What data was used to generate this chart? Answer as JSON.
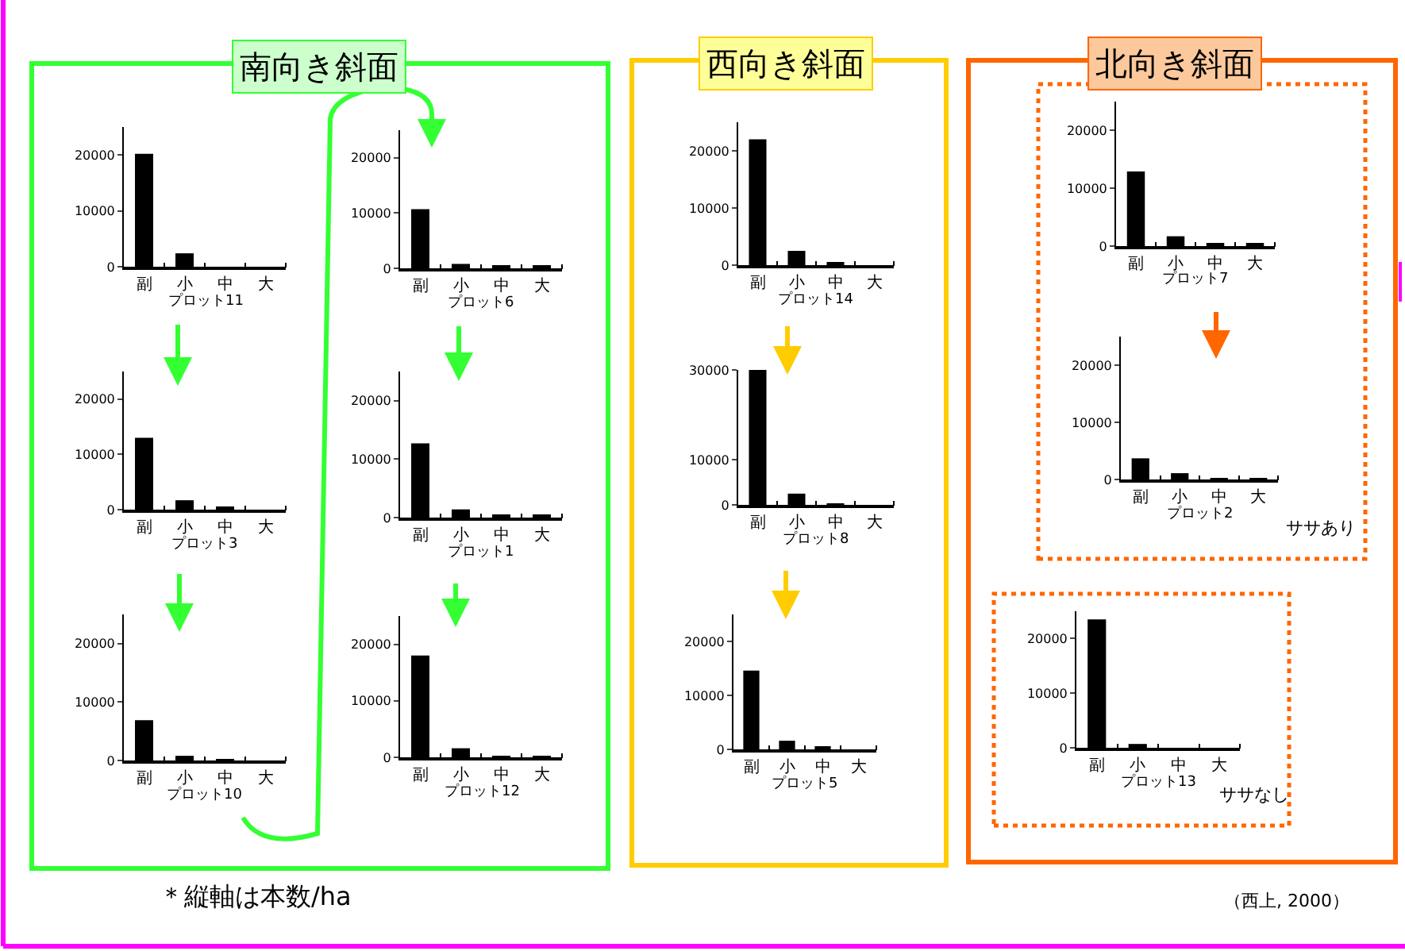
{
  "chart_data": [
    {
      "type": "bar",
      "xlabel": "プロット11",
      "categories": [
        "副",
        "小",
        "中",
        "大"
      ],
      "values": [
        20200,
        2400,
        0,
        0
      ],
      "color": "#000000",
      "ylim": [
        0,
        25000
      ],
      "yticks": [
        0,
        10000,
        20000
      ]
    },
    {
      "type": "bar",
      "xlabel": "プロット3",
      "categories": [
        "副",
        "小",
        "中",
        "大"
      ],
      "values": [
        13000,
        1700,
        300,
        0
      ],
      "color": "#000000",
      "ylim": [
        0,
        25000
      ],
      "yticks": [
        0,
        10000,
        20000
      ]
    },
    {
      "type": "bar",
      "xlabel": "プロット10",
      "categories": [
        "副",
        "小",
        "中",
        "大"
      ],
      "values": [
        6900,
        800,
        200,
        0
      ],
      "color": "#000000",
      "ylim": [
        0,
        25000
      ],
      "yticks": [
        0,
        10000,
        20000
      ]
    },
    {
      "type": "bar",
      "xlabel": "プロット6",
      "categories": [
        "副",
        "小",
        "中",
        "大"
      ],
      "values": [
        10700,
        800,
        300,
        300
      ],
      "color": "#000000",
      "ylim": [
        0,
        25000
      ],
      "yticks": [
        0,
        10000,
        20000
      ]
    },
    {
      "type": "bar",
      "xlabel": "プロット1",
      "categories": [
        "副",
        "小",
        "中",
        "大"
      ],
      "values": [
        12700,
        1400,
        300,
        300
      ],
      "color": "#000000",
      "ylim": [
        0,
        25000
      ],
      "yticks": [
        0,
        10000,
        20000
      ]
    },
    {
      "type": "bar",
      "xlabel": "プロット12",
      "categories": [
        "副",
        "小",
        "中",
        "大"
      ],
      "values": [
        18000,
        1600,
        200,
        200
      ],
      "color": "#000000",
      "ylim": [
        0,
        25000
      ],
      "yticks": [
        0,
        10000,
        20000
      ]
    },
    {
      "type": "bar",
      "xlabel": "プロット14",
      "categories": [
        "副",
        "小",
        "中",
        "大"
      ],
      "values": [
        22000,
        2500,
        300,
        0
      ],
      "color": "#000000",
      "ylim": [
        0,
        25000
      ],
      "yticks": [
        0,
        10000,
        20000
      ]
    },
    {
      "type": "bar",
      "xlabel": "プロット8",
      "categories": [
        "副",
        "小",
        "中",
        "大"
      ],
      "values": [
        30000,
        2500,
        200,
        0
      ],
      "color": "#000000",
      "ylim": [
        0,
        30000
      ],
      "yticks": [
        0,
        10000,
        30000
      ]
    },
    {
      "type": "bar",
      "xlabel": "プロット5",
      "categories": [
        "副",
        "小",
        "中",
        "大"
      ],
      "values": [
        14600,
        1600,
        400,
        0
      ],
      "color": "#000000",
      "ylim": [
        0,
        25000
      ],
      "yticks": [
        0,
        10000,
        20000
      ]
    },
    {
      "type": "bar",
      "xlabel": "プロット7",
      "categories": [
        "副",
        "小",
        "中",
        "大"
      ],
      "values": [
        12900,
        1700,
        300,
        300
      ],
      "color": "#000000",
      "ylim": [
        0,
        25000
      ],
      "yticks": [
        0,
        10000,
        20000
      ]
    },
    {
      "type": "bar",
      "xlabel": "プロット2",
      "categories": [
        "副",
        "小",
        "中",
        "大"
      ],
      "values": [
        3700,
        1100,
        200,
        200
      ],
      "color": "#000000",
      "ylim": [
        0,
        25000
      ],
      "yticks": [
        0,
        10000,
        20000
      ],
      "annotations": [
        "ササあり"
      ]
    },
    {
      "type": "bar",
      "xlabel": "プロット13",
      "categories": [
        "副",
        "小",
        "中",
        "大"
      ],
      "values": [
        23500,
        700,
        0,
        0
      ],
      "color": "#000000",
      "ylim": [
        0,
        25000
      ],
      "yticks": [
        0,
        10000,
        20000
      ],
      "annotations": [
        "ササなし"
      ]
    },
    {
      "type": "other",
      "annotations": [
        "南向き斜面",
        "西向き斜面",
        "北向き斜面",
        "＊縦軸は本数/ha",
        "（西上, 2000）"
      ]
    }
  ]
}
